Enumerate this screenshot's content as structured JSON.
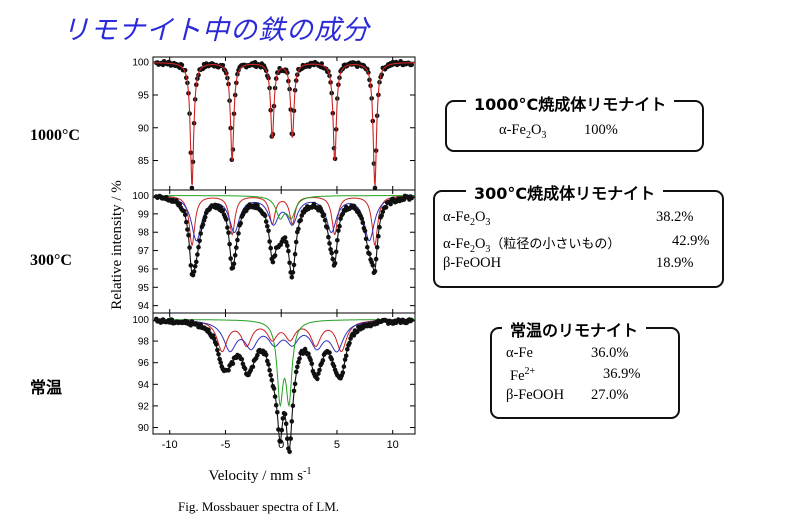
{
  "page": {
    "title": "リモナイト中の鉄の成分",
    "caption": "Fig. Mossbauer  spectra  of LM."
  },
  "temperature_labels": [
    "1000°C",
    "300°C",
    "常温"
  ],
  "panels": [
    {
      "title": "1000°C焼成体リモナイト",
      "rows": [
        {
          "parts": [
            "α-Fe",
            "2",
            "O",
            "3"
          ],
          "value": "100%"
        }
      ]
    },
    {
      "title": "300°C焼成体リモナイト",
      "rows": [
        {
          "parts": [
            "α-Fe",
            "2",
            "O",
            "3"
          ],
          "value": "38.2%"
        },
        {
          "parts": [
            "α-Fe",
            "2",
            "O",
            "3",
            "（粒径の小さいもの）"
          ],
          "value": "42.9%"
        },
        {
          "parts": [
            "β-FeOOH"
          ],
          "value": "18.9%"
        }
      ]
    },
    {
      "title": "常温のリモナイト",
      "rows": [
        {
          "parts": [
            "α-Fe"
          ],
          "value": "36.0%"
        },
        {
          "parts": [
            "Fe",
            "2+"
          ],
          "value": "36.9%"
        },
        {
          "parts": [
            "β-FeOOH"
          ],
          "value": "27.0%"
        }
      ]
    }
  ],
  "chart_data": {
    "type": "line",
    "xlabel": "Velocity / mm s-1",
    "xlabel_superscript": "-1",
    "xlabel_main": "Velocity / mm s",
    "ylabel": "Relative intensity / %",
    "x_ticks": [
      -10,
      -5,
      0,
      5,
      10
    ],
    "xlim": [
      -11.5,
      12
    ],
    "subplots": [
      {
        "label": "1000°C",
        "ylim": [
          80.5,
          100.8
        ],
        "y_ticks": [
          100,
          95,
          90,
          85
        ],
        "lines": [
          6
        ],
        "colors": {
          "fit": "#cc2222",
          "data": "#111111"
        },
        "components": [
          {
            "name": "α-Fe2O3",
            "color": "#cc2222",
            "peaks": [
              {
                "x": -8.0,
                "depth": 19.0,
                "hw": 0.18
              },
              {
                "x": -4.4,
                "depth": 15.0,
                "hw": 0.18
              },
              {
                "x": -0.8,
                "depth": 11.5,
                "hw": 0.18
              },
              {
                "x": 1.0,
                "depth": 11.5,
                "hw": 0.18
              },
              {
                "x": 4.8,
                "depth": 15.0,
                "hw": 0.18
              },
              {
                "x": 8.4,
                "depth": 19.0,
                "hw": 0.18
              }
            ]
          }
        ]
      },
      {
        "label": "300°C",
        "ylim": [
          93.6,
          100.3
        ],
        "y_ticks": [
          100,
          99,
          98,
          97,
          96,
          95,
          94
        ],
        "colors": {
          "fit": "#111111",
          "data": "#111111"
        },
        "components": [
          {
            "name": "α-Fe2O3",
            "color": "#cc2222",
            "peaks": [
              {
                "x": -8.0,
                "depth": 2.7,
                "hw": 0.3
              },
              {
                "x": -4.4,
                "depth": 2.1,
                "hw": 0.3
              },
              {
                "x": -0.8,
                "depth": 1.5,
                "hw": 0.3
              },
              {
                "x": 1.0,
                "depth": 1.5,
                "hw": 0.3
              },
              {
                "x": 4.8,
                "depth": 2.1,
                "hw": 0.3
              },
              {
                "x": 8.4,
                "depth": 2.7,
                "hw": 0.3
              }
            ]
          },
          {
            "name": "α-Fe2O3（粒径の小さいもの）",
            "color": "#3030c0",
            "peaks": [
              {
                "x": -7.6,
                "depth": 2.4,
                "hw": 0.55
              },
              {
                "x": -4.2,
                "depth": 1.9,
                "hw": 0.55
              },
              {
                "x": -0.7,
                "depth": 1.4,
                "hw": 0.55
              },
              {
                "x": 1.0,
                "depth": 1.4,
                "hw": 0.55
              },
              {
                "x": 4.5,
                "depth": 1.9,
                "hw": 0.55
              },
              {
                "x": 7.9,
                "depth": 2.4,
                "hw": 0.55
              }
            ]
          },
          {
            "name": "β-FeOOH",
            "color": "#22a022",
            "peaks": [
              {
                "x": -0.1,
                "depth": 1.1,
                "hw": 0.45
              },
              {
                "x": 0.9,
                "depth": 1.1,
                "hw": 0.45
              }
            ]
          }
        ]
      },
      {
        "label": "常温",
        "ylim": [
          89.4,
          100.6
        ],
        "y_ticks": [
          100,
          98,
          96,
          94,
          92,
          90
        ],
        "colors": {
          "fit": "#111111",
          "data": "#111111"
        },
        "components": [
          {
            "name": "α-Fe",
            "color": "#cc2222",
            "peaks": [
              {
                "x": -5.3,
                "depth": 2.8,
                "hw": 0.55
              },
              {
                "x": -3.1,
                "depth": 2.2,
                "hw": 0.55
              },
              {
                "x": -0.8,
                "depth": 1.6,
                "hw": 0.55
              },
              {
                "x": 0.8,
                "depth": 1.6,
                "hw": 0.55
              },
              {
                "x": 3.1,
                "depth": 2.2,
                "hw": 0.55
              },
              {
                "x": 5.4,
                "depth": 2.8,
                "hw": 0.55
              }
            ]
          },
          {
            "name": "Fe2+",
            "color": "#3030c0",
            "peaks": [
              {
                "x": -4.6,
                "depth": 2.6,
                "hw": 0.7
              },
              {
                "x": -2.7,
                "depth": 2.2,
                "hw": 0.7
              },
              {
                "x": -0.6,
                "depth": 1.8,
                "hw": 0.7
              },
              {
                "x": 1.0,
                "depth": 1.8,
                "hw": 0.7
              },
              {
                "x": 3.2,
                "depth": 2.2,
                "hw": 0.7
              },
              {
                "x": 5.0,
                "depth": 2.6,
                "hw": 0.7
              }
            ]
          },
          {
            "name": "β-FeOOH",
            "color": "#22a022",
            "peaks": [
              {
                "x": -0.1,
                "depth": 7.0,
                "hw": 0.32
              },
              {
                "x": 0.7,
                "depth": 7.0,
                "hw": 0.32
              }
            ]
          }
        ]
      }
    ]
  }
}
